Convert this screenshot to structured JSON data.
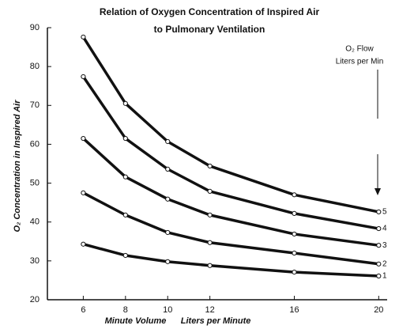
{
  "chart_data": {
    "type": "line",
    "title": "Relation of Oxygen Concentration of Inspired Air",
    "subtitle": "to Pulmonary Ventilation",
    "x_label": "Minute Volume      Liters per Minute",
    "y_label": "O₂ Concentration in Inspired Air",
    "legend_title": [
      "O₂ Flow",
      "Liters per Min"
    ],
    "x": [
      6,
      8,
      10,
      12,
      16,
      20
    ],
    "xlim": [
      4.3,
      20.4
    ],
    "xticks": [
      6,
      8,
      10,
      12,
      16,
      20
    ],
    "ylim": [
      20,
      90
    ],
    "yticks": [
      20,
      30,
      40,
      50,
      60,
      70,
      80,
      90
    ],
    "grid": false,
    "series": [
      {
        "name": "5",
        "color": "#111111",
        "values": [
          87.6,
          70.5,
          60.7,
          54.4,
          47,
          42.6
        ]
      },
      {
        "name": "4",
        "color": "#111111",
        "values": [
          77.4,
          61.5,
          53.6,
          47.9,
          42.2,
          38.3
        ]
      },
      {
        "name": "3",
        "color": "#111111",
        "values": [
          61.5,
          51.6,
          45.9,
          41.8,
          36.9,
          34
        ]
      },
      {
        "name": "2",
        "color": "#111111",
        "values": [
          47.5,
          41.8,
          37.3,
          34.7,
          32,
          29.2
        ]
      },
      {
        "name": "1",
        "color": "#111111",
        "values": [
          34.3,
          31.4,
          29.8,
          28.8,
          27.1,
          26.1
        ]
      }
    ]
  }
}
